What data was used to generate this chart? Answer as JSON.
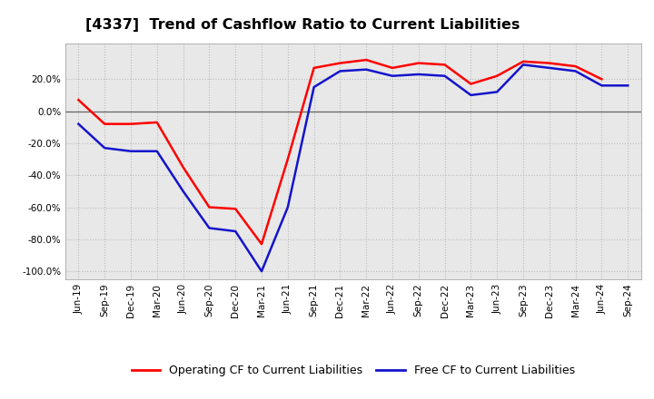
{
  "title": "[4337]  Trend of Cashflow Ratio to Current Liabilities",
  "x_labels": [
    "Jun-19",
    "Sep-19",
    "Dec-19",
    "Mar-20",
    "Jun-20",
    "Sep-20",
    "Dec-20",
    "Mar-21",
    "Jun-21",
    "Sep-21",
    "Dec-21",
    "Mar-22",
    "Jun-22",
    "Sep-22",
    "Dec-22",
    "Mar-23",
    "Jun-23",
    "Sep-23",
    "Dec-23",
    "Mar-24",
    "Jun-24",
    "Sep-24"
  ],
  "operating_cf": [
    0.07,
    -0.08,
    -0.08,
    -0.07,
    -0.35,
    -0.6,
    -0.61,
    -0.83,
    -0.3,
    0.27,
    0.3,
    0.32,
    0.27,
    0.3,
    0.29,
    0.17,
    0.22,
    0.31,
    0.3,
    0.28,
    0.2,
    null
  ],
  "free_cf": [
    -0.08,
    -0.23,
    -0.25,
    -0.25,
    -0.5,
    -0.73,
    -0.75,
    -1.0,
    -0.6,
    0.15,
    0.25,
    0.26,
    0.22,
    0.23,
    0.22,
    0.1,
    0.12,
    0.29,
    0.27,
    0.25,
    0.16,
    0.16
  ],
  "operating_color": "#FF0000",
  "free_color": "#1414CC",
  "ylim": [
    -1.05,
    0.42
  ],
  "yticks": [
    -1.0,
    -0.8,
    -0.6,
    -0.4,
    -0.2,
    0.0,
    0.2
  ],
  "plot_bg_color": "#E8E8E8",
  "background_color": "#FFFFFF",
  "grid_color": "#BBBBBB",
  "title_fontsize": 11.5,
  "legend_fontsize": 9,
  "tick_fontsize": 7.5
}
